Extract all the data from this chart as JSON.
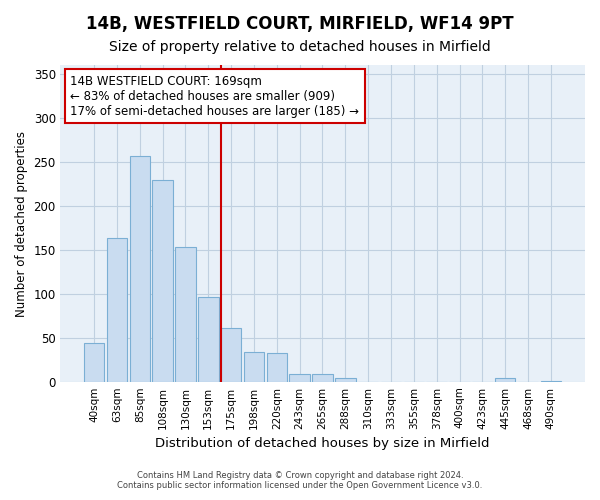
{
  "title1": "14B, WESTFIELD COURT, MIRFIELD, WF14 9PT",
  "title2": "Size of property relative to detached houses in Mirfield",
  "xlabel": "Distribution of detached houses by size in Mirfield",
  "ylabel": "Number of detached properties",
  "categories": [
    "40sqm",
    "63sqm",
    "85sqm",
    "108sqm",
    "130sqm",
    "153sqm",
    "175sqm",
    "198sqm",
    "220sqm",
    "243sqm",
    "265sqm",
    "288sqm",
    "310sqm",
    "333sqm",
    "355sqm",
    "378sqm",
    "400sqm",
    "423sqm",
    "445sqm",
    "468sqm",
    "490sqm"
  ],
  "values": [
    45,
    164,
    257,
    230,
    153,
    97,
    62,
    35,
    33,
    10,
    10,
    5,
    0,
    0,
    0,
    0,
    0,
    0,
    5,
    0,
    2
  ],
  "bar_color": "#c9dcf0",
  "bar_edge_color": "#7bafd4",
  "vline_color": "#cc0000",
  "annotation_box_text": "14B WESTFIELD COURT: 169sqm\n← 83% of detached houses are smaller (909)\n17% of semi-detached houses are larger (185) →",
  "ylim": [
    0,
    360
  ],
  "yticks": [
    0,
    50,
    100,
    150,
    200,
    250,
    300,
    350
  ],
  "footer1": "Contains HM Land Registry data © Crown copyright and database right 2024.",
  "footer2": "Contains public sector information licensed under the Open Government Licence v3.0.",
  "bg_color": "#ffffff",
  "plot_bg_color": "#e8f0f8",
  "grid_color": "#c0d0e0",
  "title1_fontsize": 12,
  "title2_fontsize": 10,
  "vline_x_index": 6
}
